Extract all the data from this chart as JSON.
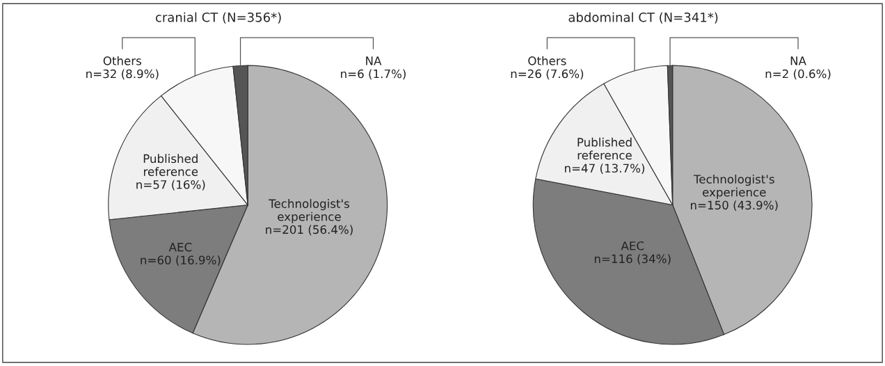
{
  "chart_data": [
    {
      "type": "pie",
      "title": "cranial CT (N=356*)",
      "categories": [
        "Technologist's experience",
        "AEC",
        "Published reference",
        "Others",
        "NA"
      ],
      "values": [
        201,
        60,
        57,
        32,
        6
      ],
      "value_labels": [
        "n=201 (56.4%)",
        "n=60 (16.9%)",
        "n=57 (16%)",
        "n=32 (8.9%)",
        "n=6 (1.7%)"
      ],
      "colors": [
        "#b5b5b5",
        "#7d7d7d",
        "#f0f0f0",
        "#f7f7f7",
        "#555555"
      ]
    },
    {
      "type": "pie",
      "title": "abdominal CT (N=341*)",
      "categories": [
        "Technologist's experience",
        "AEC",
        "Published reference",
        "Others",
        "NA"
      ],
      "values": [
        150,
        116,
        47,
        26,
        2
      ],
      "value_labels": [
        "n=150 (43.9%)",
        "n=116 (34%)",
        "n=47 (13.7%)",
        "n=26 (7.6%)",
        "n=2 (0.6%)"
      ],
      "colors": [
        "#b5b5b5",
        "#7d7d7d",
        "#f0f0f0",
        "#f7f7f7",
        "#555555"
      ]
    }
  ]
}
